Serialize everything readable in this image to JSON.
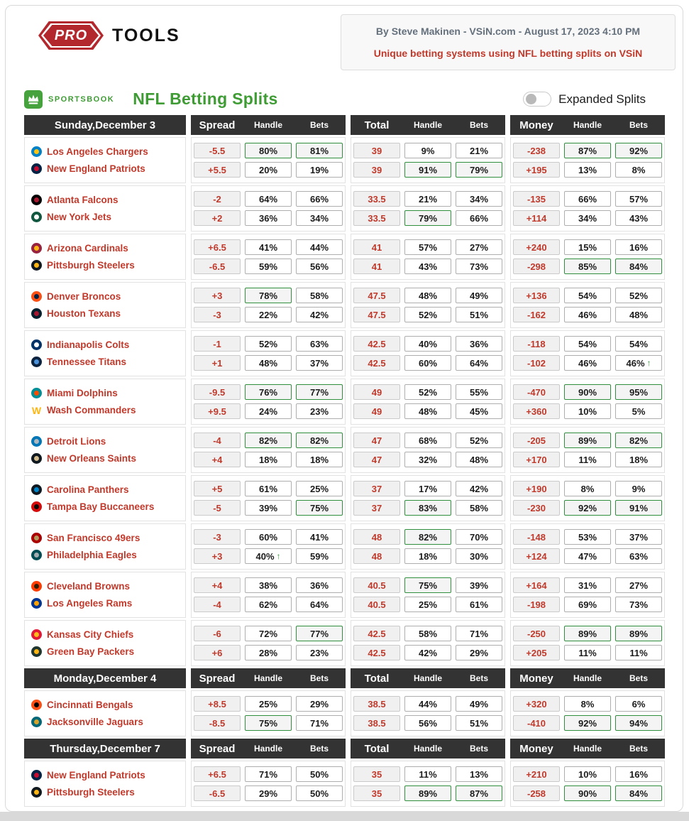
{
  "header": {
    "logo": {
      "pro": "PRO",
      "tools": "TOOLS"
    },
    "byline": "By Steve Makinen - VSiN.com - August 17, 2023 4:10 PM",
    "tagline": "Unique betting systems using NFL betting splits on VSiN"
  },
  "subheader": {
    "sportsbook_label": "SPORTSBOOK",
    "title": "NFL Betting Splits",
    "toggle_label": "Expanded Splits",
    "toggle_state": "off"
  },
  "colors": {
    "accent_green": "#3f9c35",
    "highlight_border": "#2f8f3c",
    "team_red": "#c0392b",
    "header_bg": "#333333",
    "logo_red": "#b3282d"
  },
  "table": {
    "column_headers": {
      "spread": "Spread",
      "handle": "Handle",
      "bets": "Bets",
      "total": "Total",
      "money": "Money"
    },
    "sections": [
      {
        "day_label": "Sunday,December 3",
        "games": [
          {
            "rows": [
              {
                "team": "Los Angeles Chargers",
                "logo": {
                  "color": "#0080c6",
                  "accent": "#ffc20e"
                },
                "cells": [
                  "-5.5",
                  {
                    "v": "80%",
                    "hl": true
                  },
                  {
                    "v": "81%",
                    "hl": true
                  },
                  "39",
                  "9%",
                  "21%",
                  "-238",
                  {
                    "v": "87%",
                    "hl": true
                  },
                  {
                    "v": "92%",
                    "hl": true
                  }
                ]
              },
              {
                "team": "New England Patriots",
                "logo": {
                  "color": "#002244",
                  "accent": "#c60c30"
                },
                "cells": [
                  "+5.5",
                  "20%",
                  "19%",
                  "39",
                  {
                    "v": "91%",
                    "hl": true
                  },
                  {
                    "v": "79%",
                    "hl": true
                  },
                  "+195",
                  "13%",
                  "8%"
                ]
              }
            ]
          },
          {
            "rows": [
              {
                "team": "Atlanta Falcons",
                "logo": {
                  "color": "#000000",
                  "accent": "#a71930"
                },
                "cells": [
                  "-2",
                  "64%",
                  "66%",
                  "33.5",
                  "21%",
                  "34%",
                  "-135",
                  "66%",
                  "57%"
                ]
              },
              {
                "team": "New York Jets",
                "logo": {
                  "color": "#125740",
                  "accent": "#ffffff"
                },
                "cells": [
                  "+2",
                  "36%",
                  "34%",
                  "33.5",
                  {
                    "v": "79%",
                    "hl": true
                  },
                  "66%",
                  "+114",
                  "34%",
                  "43%"
                ]
              }
            ]
          },
          {
            "rows": [
              {
                "team": "Arizona Cardinals",
                "logo": {
                  "color": "#97233f",
                  "accent": "#ffb612"
                },
                "cells": [
                  "+6.5",
                  "41%",
                  "44%",
                  "41",
                  "57%",
                  "27%",
                  "+240",
                  "15%",
                  "16%"
                ]
              },
              {
                "team": "Pittsburgh Steelers",
                "logo": {
                  "color": "#101820",
                  "accent": "#ffb612"
                },
                "cells": [
                  "-6.5",
                  "59%",
                  "56%",
                  "41",
                  "43%",
                  "73%",
                  "-298",
                  {
                    "v": "85%",
                    "hl": true
                  },
                  {
                    "v": "84%",
                    "hl": true
                  }
                ]
              }
            ]
          },
          {
            "rows": [
              {
                "team": "Denver Broncos",
                "logo": {
                  "color": "#fb4f14",
                  "accent": "#002244"
                },
                "cells": [
                  "+3",
                  {
                    "v": "78%",
                    "hl": true
                  },
                  "58%",
                  "47.5",
                  "48%",
                  "49%",
                  "+136",
                  "54%",
                  "52%"
                ]
              },
              {
                "team": "Houston Texans",
                "logo": {
                  "color": "#03202f",
                  "accent": "#a71930"
                },
                "cells": [
                  "-3",
                  "22%",
                  "42%",
                  "47.5",
                  "52%",
                  "51%",
                  "-162",
                  "46%",
                  "48%"
                ]
              }
            ]
          },
          {
            "rows": [
              {
                "team": "Indianapolis Colts",
                "logo": {
                  "color": "#013369",
                  "accent": "#ffffff"
                },
                "cells": [
                  "-1",
                  "52%",
                  "63%",
                  "42.5",
                  "40%",
                  "36%",
                  "-118",
                  "54%",
                  "54%"
                ]
              },
              {
                "team": "Tennessee Titans",
                "logo": {
                  "color": "#0c2340",
                  "accent": "#4b92db"
                },
                "cells": [
                  "+1",
                  "48%",
                  "37%",
                  "42.5",
                  "60%",
                  "64%",
                  "-102",
                  "46%",
                  {
                    "v": "46%",
                    "up": true
                  }
                ]
              }
            ]
          },
          {
            "rows": [
              {
                "team": "Miami Dolphins",
                "logo": {
                  "color": "#008e97",
                  "accent": "#fc4c02"
                },
                "cells": [
                  "-9.5",
                  {
                    "v": "76%",
                    "hl": true
                  },
                  {
                    "v": "77%",
                    "hl": true
                  },
                  "49",
                  "52%",
                  "55%",
                  "-470",
                  {
                    "v": "90%",
                    "hl": true
                  },
                  {
                    "v": "95%",
                    "hl": true
                  }
                ]
              },
              {
                "team": "Wash Commanders",
                "logo": {
                  "color": "#ffb612",
                  "accent": "#5a1414",
                  "text": "W"
                },
                "cells": [
                  "+9.5",
                  "24%",
                  "23%",
                  "49",
                  "48%",
                  "45%",
                  "+360",
                  "10%",
                  "5%"
                ]
              }
            ]
          },
          {
            "rows": [
              {
                "team": "Detroit Lions",
                "logo": {
                  "color": "#0076b6",
                  "accent": "#b0b7bc"
                },
                "cells": [
                  "-4",
                  {
                    "v": "82%",
                    "hl": true
                  },
                  {
                    "v": "82%",
                    "hl": true
                  },
                  "47",
                  "68%",
                  "52%",
                  "-205",
                  {
                    "v": "89%",
                    "hl": true
                  },
                  {
                    "v": "82%",
                    "hl": true
                  }
                ]
              },
              {
                "team": "New Orleans Saints",
                "logo": {
                  "color": "#101820",
                  "accent": "#d3bc8d"
                },
                "cells": [
                  "+4",
                  "18%",
                  "18%",
                  "47",
                  "32%",
                  "48%",
                  "+170",
                  "11%",
                  "18%"
                ]
              }
            ]
          },
          {
            "rows": [
              {
                "team": "Carolina Panthers",
                "logo": {
                  "color": "#101820",
                  "accent": "#0085ca"
                },
                "cells": [
                  "+5",
                  "61%",
                  "25%",
                  "37",
                  "17%",
                  "42%",
                  "+190",
                  "8%",
                  "9%"
                ]
              },
              {
                "team": "Tampa Bay Buccaneers",
                "logo": {
                  "color": "#d50a0a",
                  "accent": "#0a0a08"
                },
                "cells": [
                  "-5",
                  "39%",
                  {
                    "v": "75%",
                    "hl": true
                  },
                  "37",
                  {
                    "v": "83%",
                    "hl": true
                  },
                  "58%",
                  "-230",
                  {
                    "v": "92%",
                    "hl": true
                  },
                  {
                    "v": "91%",
                    "hl": true
                  }
                ]
              }
            ]
          },
          {
            "rows": [
              {
                "team": "San Francisco 49ers",
                "logo": {
                  "color": "#aa0000",
                  "accent": "#b3995d"
                },
                "cells": [
                  "-3",
                  "60%",
                  "41%",
                  "48",
                  {
                    "v": "82%",
                    "hl": true
                  },
                  "70%",
                  "-148",
                  "53%",
                  "37%"
                ]
              },
              {
                "team": "Philadelphia Eagles",
                "logo": {
                  "color": "#004c54",
                  "accent": "#a5acaf"
                },
                "cells": [
                  "+3",
                  {
                    "v": "40%",
                    "up": true
                  },
                  "59%",
                  "48",
                  "18%",
                  "30%",
                  "+124",
                  "47%",
                  "63%"
                ]
              }
            ]
          },
          {
            "rows": [
              {
                "team": "Cleveland Browns",
                "logo": {
                  "color": "#ff3c00",
                  "accent": "#311d00"
                },
                "cells": [
                  "+4",
                  "38%",
                  "36%",
                  "40.5",
                  {
                    "v": "75%",
                    "hl": true
                  },
                  "39%",
                  "+164",
                  "31%",
                  "27%"
                ]
              },
              {
                "team": "Los Angeles Rams",
                "logo": {
                  "color": "#003594",
                  "accent": "#ffa300"
                },
                "cells": [
                  "-4",
                  "62%",
                  "64%",
                  "40.5",
                  "25%",
                  "61%",
                  "-198",
                  "69%",
                  "73%"
                ]
              }
            ]
          },
          {
            "rows": [
              {
                "team": "Kansas City Chiefs",
                "logo": {
                  "color": "#e31837",
                  "accent": "#ffb81c"
                },
                "cells": [
                  "-6",
                  "72%",
                  {
                    "v": "77%",
                    "hl": true
                  },
                  "42.5",
                  "58%",
                  "71%",
                  "-250",
                  {
                    "v": "89%",
                    "hl": true
                  },
                  {
                    "v": "89%",
                    "hl": true
                  }
                ]
              },
              {
                "team": "Green Bay Packers",
                "logo": {
                  "color": "#203731",
                  "accent": "#ffb612"
                },
                "cells": [
                  "+6",
                  "28%",
                  "23%",
                  "42.5",
                  "42%",
                  "29%",
                  "+205",
                  "11%",
                  "11%"
                ]
              }
            ]
          }
        ]
      },
      {
        "day_label": "Monday,December 4",
        "games": [
          {
            "rows": [
              {
                "team": "Cincinnati Bengals",
                "logo": {
                  "color": "#fb4f14",
                  "accent": "#000000"
                },
                "cells": [
                  "+8.5",
                  "25%",
                  "29%",
                  "38.5",
                  "44%",
                  "49%",
                  "+320",
                  "8%",
                  "6%"
                ]
              },
              {
                "team": "Jacksonville Jaguars",
                "logo": {
                  "color": "#006778",
                  "accent": "#d7a22a"
                },
                "cells": [
                  "-8.5",
                  {
                    "v": "75%",
                    "hl": true
                  },
                  "71%",
                  "38.5",
                  "56%",
                  "51%",
                  "-410",
                  {
                    "v": "92%",
                    "hl": true
                  },
                  {
                    "v": "94%",
                    "hl": true
                  }
                ]
              }
            ]
          }
        ]
      },
      {
        "day_label": "Thursday,December 7",
        "games": [
          {
            "rows": [
              {
                "team": "New England Patriots",
                "logo": {
                  "color": "#002244",
                  "accent": "#c60c30"
                },
                "cells": [
                  "+6.5",
                  "71%",
                  "50%",
                  "35",
                  "11%",
                  "13%",
                  "+210",
                  "10%",
                  "16%"
                ]
              },
              {
                "team": "Pittsburgh Steelers",
                "logo": {
                  "color": "#101820",
                  "accent": "#ffb612"
                },
                "cells": [
                  "-6.5",
                  "29%",
                  "50%",
                  "35",
                  {
                    "v": "89%",
                    "hl": true
                  },
                  {
                    "v": "87%",
                    "hl": true
                  },
                  "-258",
                  {
                    "v": "90%",
                    "hl": true
                  },
                  {
                    "v": "84%",
                    "hl": true
                  }
                ]
              }
            ]
          }
        ]
      }
    ]
  }
}
